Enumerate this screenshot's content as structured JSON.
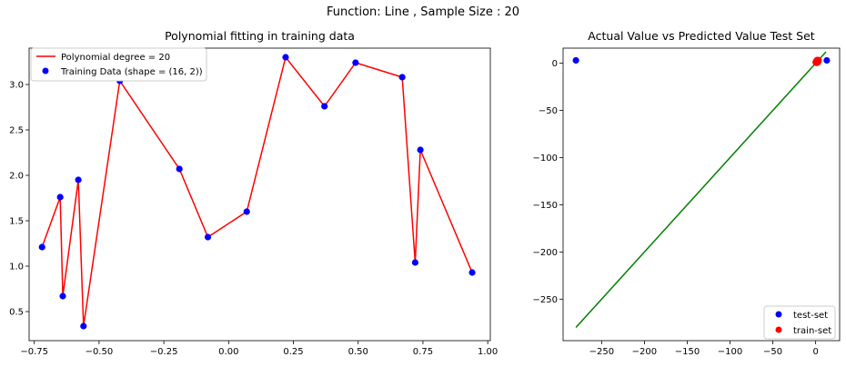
{
  "suptitle": "Function: Line , Sample Size : 20",
  "chart_data": [
    {
      "type": "line",
      "title": "Polynomial fitting in training data",
      "xlabel": "",
      "ylabel": "",
      "xlim": [
        -0.77,
        1.01
      ],
      "ylim": [
        0.18,
        3.4
      ],
      "xticks": [
        -0.75,
        -0.5,
        -0.25,
        0.0,
        0.25,
        0.5,
        0.75,
        1.0
      ],
      "xtick_labels": [
        "−0.75",
        "−0.50",
        "−0.25",
        "0.00",
        "0.25",
        "0.50",
        "0.75",
        "1.00"
      ],
      "yticks": [
        0.5,
        1.0,
        1.5,
        2.0,
        2.5,
        3.0
      ],
      "ytick_labels": [
        "0.5",
        "1.0",
        "1.5",
        "2.0",
        "2.5",
        "3.0"
      ],
      "grid": false,
      "legend_position": "top-left",
      "series": [
        {
          "name": "Polynomial degree = 20",
          "kind": "line",
          "color": "#ff0000",
          "x": [
            -0.72,
            -0.65,
            -0.64,
            -0.58,
            -0.56,
            -0.42,
            -0.19,
            -0.08,
            0.07,
            0.22,
            0.37,
            0.49,
            0.67,
            0.72,
            0.74,
            0.94
          ],
          "y": [
            1.21,
            1.76,
            0.67,
            1.95,
            0.34,
            3.04,
            2.07,
            1.32,
            1.6,
            3.3,
            2.76,
            3.24,
            3.08,
            1.04,
            2.28,
            0.93
          ]
        },
        {
          "name": "Training Data (shape = (16, 2))",
          "kind": "scatter",
          "color": "#0000ff",
          "x": [
            -0.72,
            -0.65,
            -0.64,
            -0.58,
            -0.56,
            -0.42,
            -0.19,
            -0.08,
            0.07,
            0.22,
            0.37,
            0.49,
            0.67,
            0.72,
            0.74,
            0.94
          ],
          "y": [
            1.21,
            1.76,
            0.67,
            1.95,
            0.34,
            3.04,
            2.07,
            1.32,
            1.6,
            3.3,
            2.76,
            3.24,
            3.08,
            1.04,
            2.28,
            0.93
          ]
        }
      ]
    },
    {
      "type": "scatter",
      "title": "Actual Value vs Predicted Value Test Set",
      "xlabel": "",
      "ylabel": "",
      "xlim": [
        -295,
        28
      ],
      "ylim": [
        -294,
        16
      ],
      "xticks": [
        -250,
        -200,
        -150,
        -100,
        -50,
        0
      ],
      "xtick_labels": [
        "−250",
        "−200",
        "−150",
        "−100",
        "−50",
        "0"
      ],
      "yticks": [
        -250,
        -200,
        -150,
        -100,
        -50,
        0
      ],
      "ytick_labels": [
        "−250",
        "−200",
        "−150",
        "−100",
        "−50",
        "0"
      ],
      "grid": false,
      "legend_position": "bottom-right",
      "reference_line": {
        "kind": "line",
        "color": "#008000",
        "x": [
          -280,
          12
        ],
        "y": [
          -280,
          12
        ]
      },
      "series": [
        {
          "name": "test-set",
          "kind": "scatter",
          "color": "#0000ff",
          "x": [
            -280,
            2,
            3,
            13
          ],
          "y": [
            3,
            2,
            3,
            3
          ]
        },
        {
          "name": "train-set",
          "kind": "scatter",
          "color": "#ff0000",
          "x": [
            0.5,
            1,
            1.5,
            2,
            2.5,
            3,
            1.2,
            2.2
          ],
          "y": [
            1,
            2,
            1.5,
            3,
            2.5,
            3,
            0.8,
            1.2
          ]
        }
      ]
    }
  ]
}
